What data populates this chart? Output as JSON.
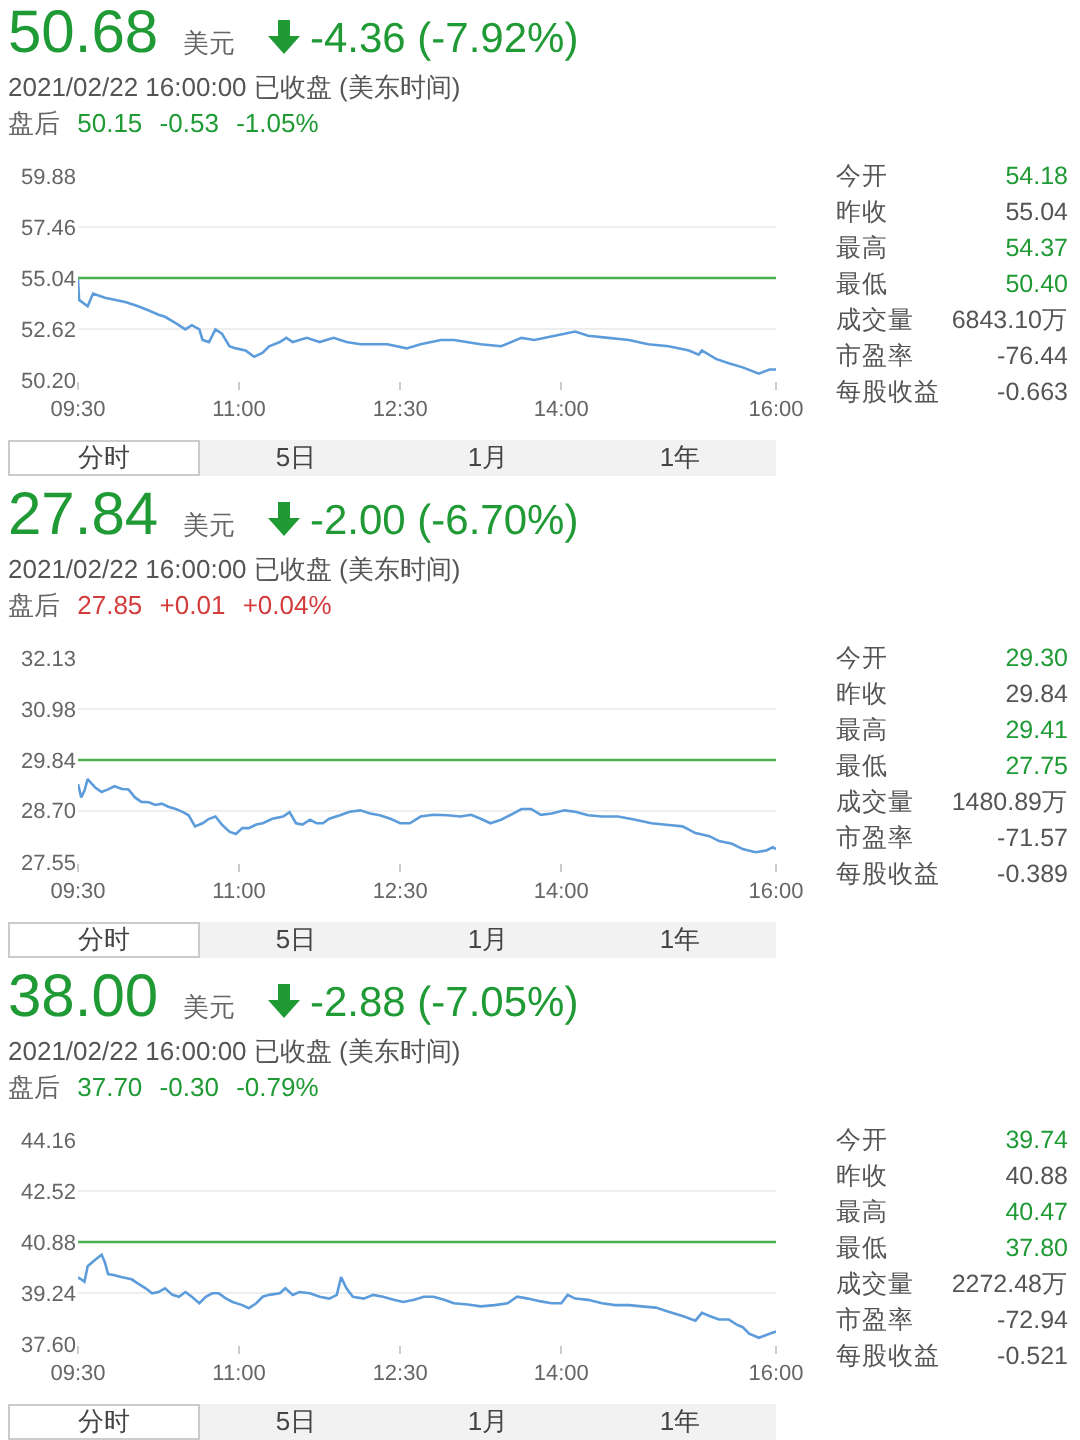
{
  "chart_data": [
    {
      "type": "line",
      "title": "50.68 美元 -4.36 (-7.92%)",
      "subtitle": "2021/02/22 16:00:00 已收盘 (美东时间)",
      "annotations": [
        "盘后 50.15 -0.53 -1.05%",
        "分时",
        "5日",
        "1月",
        "1年"
      ],
      "x": [
        9.5,
        9.51,
        9.59,
        9.64,
        9.75,
        9.94,
        10.06,
        10.16,
        10.25,
        10.31,
        10.41,
        10.5,
        10.56,
        10.63,
        10.66,
        10.72,
        10.78,
        10.84,
        10.91,
        10.97,
        11.06,
        11.14,
        11.22,
        11.28,
        11.38,
        11.44,
        11.5,
        11.63,
        11.75,
        11.88,
        12.0,
        12.13,
        12.38,
        12.56,
        12.69,
        12.88,
        13.0,
        13.25,
        13.44,
        13.63,
        13.75,
        13.94,
        14.13,
        14.25,
        14.44,
        14.63,
        14.81,
        15.0,
        15.19,
        15.28,
        15.31,
        15.44,
        15.56,
        15.69,
        15.84,
        15.94,
        16.0
      ],
      "values": [
        55.0,
        54.0,
        53.7,
        54.3,
        54.1,
        53.9,
        53.7,
        53.5,
        53.3,
        53.2,
        52.9,
        52.6,
        52.8,
        52.6,
        52.1,
        52.0,
        52.6,
        52.4,
        51.8,
        51.7,
        51.6,
        51.3,
        51.5,
        51.8,
        52.0,
        52.2,
        52.0,
        52.2,
        52.0,
        52.2,
        52.0,
        51.9,
        51.9,
        51.7,
        51.9,
        52.1,
        52.1,
        51.9,
        51.8,
        52.2,
        52.1,
        52.3,
        52.5,
        52.3,
        52.2,
        52.1,
        51.9,
        51.8,
        51.6,
        51.4,
        51.6,
        51.2,
        51.0,
        50.8,
        50.5,
        50.7,
        50.7
      ],
      "color": "#5d9cdb",
      "xlim": [
        9.5,
        16
      ],
      "xticks": [
        {
          "value": 9.5,
          "label": "09:30"
        },
        {
          "value": 11,
          "label": "11:00"
        },
        {
          "value": 12.5,
          "label": "12:30"
        },
        {
          "value": 14,
          "label": "14:00"
        },
        {
          "value": 16,
          "label": "16:00"
        }
      ],
      "ylim": [
        50.2,
        59.88
      ],
      "yticks": [
        {
          "value": 50.2,
          "label": "50.20"
        },
        52.62,
        55.04,
        57.46,
        59.88
      ],
      "ref_lines": [
        {
          "axis": "y",
          "value": 55.04,
          "color": "#4caf50"
        }
      ],
      "grid": "y"
    },
    {
      "type": "other",
      "annotations": [
        "今开 54.18",
        "昨收 55.04",
        "最高 54.37",
        "最低 50.40",
        "成交量 6843.10万",
        "市盈率 -76.44",
        "每股收益 -0.663"
      ]
    },
    {
      "type": "line",
      "title": "27.84 美元 -2.00 (-6.70%)",
      "subtitle": "2021/02/22 16:00:00 已收盘 (美东时间)",
      "annotations": [
        "盘后 27.85 +0.01 +0.04%",
        "分时",
        "5日",
        "1月",
        "1年"
      ],
      "x": [
        9.5,
        9.53,
        9.56,
        9.59,
        9.66,
        9.72,
        9.78,
        9.84,
        9.91,
        9.97,
        10.03,
        10.09,
        10.16,
        10.22,
        10.28,
        10.34,
        10.41,
        10.47,
        10.53,
        10.59,
        10.66,
        10.72,
        10.78,
        10.84,
        10.91,
        10.97,
        11.03,
        11.09,
        11.16,
        11.22,
        11.31,
        11.41,
        11.47,
        11.53,
        11.59,
        11.66,
        11.72,
        11.78,
        11.84,
        11.94,
        12.03,
        12.13,
        12.22,
        12.31,
        12.41,
        12.5,
        12.59,
        12.69,
        12.81,
        12.94,
        13.06,
        13.16,
        13.25,
        13.34,
        13.44,
        13.53,
        13.63,
        13.72,
        13.81,
        13.91,
        14.03,
        14.13,
        14.25,
        14.38,
        14.53,
        14.69,
        14.84,
        15.0,
        15.13,
        15.25,
        15.38,
        15.47,
        15.59,
        15.69,
        15.81,
        15.91,
        15.97,
        16.0
      ],
      "values": [
        29.3,
        29.0,
        29.15,
        29.41,
        29.22,
        29.12,
        29.18,
        29.25,
        29.19,
        29.18,
        29.0,
        28.9,
        28.89,
        28.83,
        28.86,
        28.79,
        28.74,
        28.68,
        28.6,
        28.35,
        28.42,
        28.52,
        28.57,
        28.39,
        28.23,
        28.18,
        28.31,
        28.31,
        28.39,
        28.42,
        28.52,
        28.57,
        28.67,
        28.42,
        28.39,
        28.5,
        28.42,
        28.42,
        28.52,
        28.6,
        28.68,
        28.71,
        28.64,
        28.6,
        28.52,
        28.42,
        28.42,
        28.57,
        28.61,
        28.6,
        28.57,
        28.61,
        28.52,
        28.42,
        28.5,
        28.61,
        28.74,
        28.74,
        28.61,
        28.64,
        28.71,
        28.68,
        28.6,
        28.57,
        28.57,
        28.5,
        28.42,
        28.38,
        28.35,
        28.2,
        28.13,
        28.02,
        27.96,
        27.84,
        27.77,
        27.81,
        27.88,
        27.84
      ],
      "color": "#5d9cdb",
      "xlim": [
        9.5,
        16
      ],
      "xticks": [
        {
          "value": 9.5,
          "label": "09:30"
        },
        {
          "value": 11,
          "label": "11:00"
        },
        {
          "value": 12.5,
          "label": "12:30"
        },
        {
          "value": 14,
          "label": "14:00"
        },
        {
          "value": 16,
          "label": "16:00"
        }
      ],
      "ylim": [
        27.55,
        32.13
      ],
      "yticks": [
        27.55,
        {
          "value": 28.7,
          "label": "28.70"
        },
        29.84,
        30.98,
        32.13
      ],
      "ref_lines": [
        {
          "axis": "y",
          "value": 29.84,
          "color": "#4caf50"
        }
      ],
      "grid": "y"
    },
    {
      "type": "other",
      "annotations": [
        "今开 29.30",
        "昨收 29.84",
        "最高 29.41",
        "最低 27.75",
        "成交量 1480.89万",
        "市盈率 -71.57",
        "每股收益 -0.389"
      ]
    },
    {
      "type": "line",
      "title": "38.00 美元 -2.88 (-7.05%)",
      "subtitle": "2021/02/22 16:00:00 已收盘 (美东时间)",
      "annotations": [
        "盘后 37.70 -0.30 -0.79%",
        "分时",
        "5日",
        "1月",
        "1年"
      ],
      "x": [
        9.5,
        9.53,
        9.56,
        9.59,
        9.66,
        9.72,
        9.75,
        9.78,
        9.84,
        9.91,
        10.0,
        10.06,
        10.13,
        10.19,
        10.25,
        10.31,
        10.38,
        10.44,
        10.5,
        10.56,
        10.63,
        10.69,
        10.75,
        10.81,
        10.88,
        10.94,
        11.03,
        11.09,
        11.16,
        11.22,
        11.28,
        11.38,
        11.43,
        11.5,
        11.56,
        11.66,
        11.75,
        11.84,
        11.91,
        11.95,
        12.0,
        12.06,
        12.16,
        12.25,
        12.34,
        12.44,
        12.53,
        12.63,
        12.72,
        12.81,
        12.91,
        13.0,
        13.13,
        13.25,
        13.38,
        13.5,
        13.59,
        13.69,
        13.81,
        13.91,
        14.0,
        14.06,
        14.13,
        14.25,
        14.38,
        14.5,
        14.63,
        14.75,
        14.88,
        15.0,
        15.13,
        15.25,
        15.31,
        15.38,
        15.47,
        15.56,
        15.63,
        15.69,
        15.75,
        15.84,
        15.94,
        16.0
      ],
      "values": [
        39.74,
        39.68,
        39.6,
        40.1,
        40.31,
        40.47,
        40.23,
        39.85,
        39.81,
        39.75,
        39.68,
        39.54,
        39.39,
        39.23,
        39.27,
        39.39,
        39.18,
        39.12,
        39.27,
        39.12,
        38.91,
        39.12,
        39.23,
        39.23,
        39.06,
        38.95,
        38.85,
        38.75,
        38.91,
        39.12,
        39.18,
        39.23,
        39.39,
        39.18,
        39.27,
        39.23,
        39.12,
        39.06,
        39.18,
        39.75,
        39.39,
        39.12,
        39.06,
        39.18,
        39.12,
        39.02,
        38.95,
        39.02,
        39.12,
        39.12,
        39.02,
        38.91,
        38.87,
        38.81,
        38.85,
        38.91,
        39.12,
        39.06,
        38.97,
        38.91,
        38.91,
        39.18,
        39.06,
        39.02,
        38.91,
        38.85,
        38.85,
        38.81,
        38.77,
        38.64,
        38.5,
        38.35,
        38.6,
        38.5,
        38.39,
        38.39,
        38.23,
        38.14,
        37.93,
        37.8,
        37.93,
        38.0
      ],
      "color": "#5d9cdb",
      "xlim": [
        9.5,
        16
      ],
      "xticks": [
        {
          "value": 9.5,
          "label": "09:30"
        },
        {
          "value": 11,
          "label": "11:00"
        },
        {
          "value": 12.5,
          "label": "12:30"
        },
        {
          "value": 14,
          "label": "14:00"
        },
        {
          "value": 16,
          "label": "16:00"
        }
      ],
      "ylim": [
        37.6,
        44.16
      ],
      "yticks": [
        {
          "value": 37.6,
          "label": "37.60"
        },
        39.24,
        40.88,
        42.52,
        44.16
      ],
      "ref_lines": [
        {
          "axis": "y",
          "value": 40.88,
          "color": "#4caf50"
        }
      ],
      "grid": "y"
    },
    {
      "type": "other",
      "annotations": [
        "今开 39.74",
        "昨收 40.88",
        "最高 40.47",
        "最低 37.80",
        "成交量 2272.48万",
        "市盈率 -72.94",
        "每股收益 -0.521"
      ]
    }
  ]
}
